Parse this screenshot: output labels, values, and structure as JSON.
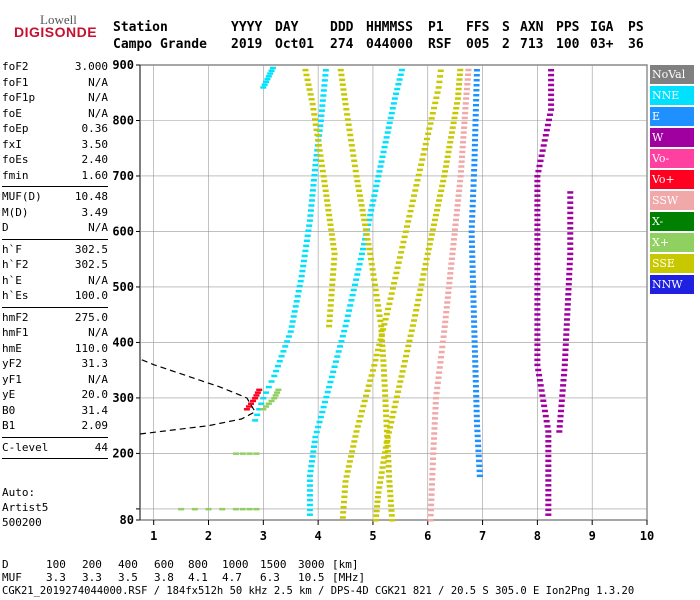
{
  "logo": {
    "line1": "Lowell",
    "line2": "DIGISONDE"
  },
  "header": {
    "labels": [
      "Station",
      "YYYY",
      "DAY",
      "DDD",
      "HHMMSS",
      "P1",
      "FFS",
      "S",
      "AXN",
      "PPS",
      "IGA",
      "PS"
    ],
    "values": [
      "Campo Grande",
      "2019",
      "Oct01",
      "274",
      "044000",
      "RSF",
      "005",
      "2",
      "713",
      "100",
      "03+",
      "36"
    ]
  },
  "params": [
    {
      "group": [
        {
          "k": "foF2",
          "v": "3.000"
        },
        {
          "k": "foF1",
          "v": "N/A"
        },
        {
          "k": "foF1p",
          "v": "N/A"
        },
        {
          "k": "foE",
          "v": "N/A"
        },
        {
          "k": "foEp",
          "v": "0.36"
        },
        {
          "k": "fxI",
          "v": "3.50"
        },
        {
          "k": "foEs",
          "v": "2.40"
        },
        {
          "k": "fmin",
          "v": "1.60"
        }
      ]
    },
    {
      "group": [
        {
          "k": "MUF(D)",
          "v": "10.48"
        },
        {
          "k": "M(D)",
          "v": "3.49"
        },
        {
          "k": "D",
          "v": "N/A"
        }
      ]
    },
    {
      "group": [
        {
          "k": "h`F",
          "v": "302.5"
        },
        {
          "k": "h`F2",
          "v": "302.5"
        },
        {
          "k": "h`E",
          "v": "N/A"
        },
        {
          "k": "h`Es",
          "v": "100.0"
        }
      ]
    },
    {
      "group": [
        {
          "k": "hmF2",
          "v": "275.0"
        },
        {
          "k": "hmF1",
          "v": "N/A"
        },
        {
          "k": "hmE",
          "v": "110.0"
        },
        {
          "k": "yF2",
          "v": "31.3"
        },
        {
          "k": "yF1",
          "v": "N/A"
        },
        {
          "k": "yE",
          "v": "20.0"
        },
        {
          "k": "B0",
          "v": "31.4"
        },
        {
          "k": "B1",
          "v": "2.09"
        }
      ]
    },
    {
      "group": [
        {
          "k": "C-level",
          "v": "44"
        }
      ]
    }
  ],
  "auto": [
    "Auto:",
    "Artist5",
    "500200"
  ],
  "legend": [
    {
      "label": "NoVal",
      "color": "#808080"
    },
    {
      "label": "NNE",
      "color": "#00e0ff"
    },
    {
      "label": "E",
      "color": "#1e90ff"
    },
    {
      "label": "W",
      "color": "#a000a0"
    },
    {
      "label": "Vo-",
      "color": "#ff40a0"
    },
    {
      "label": "Vo+",
      "color": "#ff0020"
    },
    {
      "label": "SSW",
      "color": "#f0a8a8"
    },
    {
      "label": "X-",
      "color": "#008000"
    },
    {
      "label": "X+",
      "color": "#90d060"
    },
    {
      "label": "SSE",
      "color": "#c8c800"
    },
    {
      "label": "NNW",
      "color": "#2020e0"
    }
  ],
  "footer": {
    "d_row": [
      "D",
      "100",
      "200",
      "400",
      "600",
      "800",
      "1000",
      "1500",
      "3000",
      "[km]"
    ],
    "muf_row": [
      "MUF",
      "3.3",
      "3.3",
      "3.5",
      "3.8",
      "4.1",
      "4.7",
      "6.3",
      "10.5",
      "[MHz]"
    ],
    "info": "CGK21_2019274044000.RSF / 184fx512h 50 kHz 2.5 km / DPS-4D CGK21 821 / 20.5 S 305.0 E Ion2Png 1.3.20"
  },
  "chart_data": {
    "type": "scatter",
    "title": "",
    "xlabel": "",
    "ylabel": "",
    "xlim": [
      0.75,
      10.0
    ],
    "ylim": [
      80,
      900
    ],
    "xticks": [
      1,
      2,
      3,
      4,
      5,
      6,
      7,
      8,
      9,
      10
    ],
    "yticks": [
      80,
      100,
      200,
      300,
      400,
      500,
      600,
      700,
      800,
      900
    ],
    "ytick_labels": [
      80,
      200,
      300,
      400,
      500,
      600,
      700,
      800,
      900
    ],
    "grid": true,
    "legend_position": "right",
    "traces": [
      {
        "name": "NNE",
        "color": "#00e0ff",
        "points": [
          [
            2.85,
            260
          ],
          [
            3.0,
            300
          ],
          [
            3.2,
            340
          ],
          [
            3.5,
            420
          ],
          [
            3.7,
            520
          ],
          [
            3.85,
            620
          ],
          [
            3.95,
            720
          ],
          [
            4.05,
            800
          ],
          [
            4.15,
            900
          ]
        ]
      },
      {
        "name": "NNE",
        "color": "#00e0ff",
        "points": [
          [
            3.85,
            90
          ],
          [
            3.85,
            160
          ],
          [
            3.95,
            230
          ],
          [
            4.2,
            320
          ],
          [
            4.5,
            430
          ],
          [
            4.8,
            560
          ],
          [
            5.1,
            700
          ],
          [
            5.4,
            840
          ],
          [
            5.55,
            900
          ]
        ]
      },
      {
        "name": "SSE",
        "color": "#c8c800",
        "points": [
          [
            4.45,
            85
          ],
          [
            4.5,
            150
          ],
          [
            4.7,
            240
          ],
          [
            5.0,
            350
          ],
          [
            5.3,
            470
          ],
          [
            5.6,
            600
          ],
          [
            5.9,
            730
          ],
          [
            6.2,
            860
          ],
          [
            6.25,
            900
          ]
        ]
      },
      {
        "name": "SSE",
        "color": "#c8c800",
        "points": [
          [
            5.05,
            80
          ],
          [
            5.1,
            130
          ],
          [
            5.25,
            220
          ],
          [
            5.5,
            330
          ],
          [
            5.75,
            440
          ],
          [
            6.0,
            560
          ],
          [
            6.3,
            700
          ],
          [
            6.55,
            840
          ],
          [
            6.6,
            900
          ]
        ]
      },
      {
        "name": "SSE",
        "color": "#c8c800",
        "points": [
          [
            5.35,
            80
          ],
          [
            5.3,
            150
          ],
          [
            5.25,
            250
          ],
          [
            5.2,
            350
          ],
          [
            5.15,
            430
          ],
          [
            4.95,
            560
          ],
          [
            4.7,
            700
          ],
          [
            4.5,
            830
          ],
          [
            4.4,
            900
          ]
        ]
      },
      {
        "name": "SSE",
        "color": "#c8c800",
        "points": [
          [
            4.2,
            430
          ],
          [
            4.3,
            560
          ],
          [
            4.1,
            700
          ],
          [
            3.9,
            830
          ],
          [
            3.75,
            900
          ]
        ]
      },
      {
        "name": "SSW",
        "color": "#f0a8a8",
        "points": [
          [
            6.05,
            80
          ],
          [
            6.1,
            200
          ],
          [
            6.15,
            300
          ],
          [
            6.3,
            420
          ],
          [
            6.45,
            560
          ],
          [
            6.6,
            700
          ],
          [
            6.7,
            840
          ],
          [
            6.75,
            900
          ]
        ]
      },
      {
        "name": "E",
        "color": "#1e90ff",
        "points": [
          [
            6.95,
            160
          ],
          [
            6.9,
            250
          ],
          [
            6.85,
            420
          ],
          [
            6.8,
            600
          ],
          [
            6.85,
            720
          ],
          [
            6.9,
            900
          ]
        ]
      },
      {
        "name": "W",
        "color": "#a000a0",
        "points": [
          [
            8.2,
            90
          ],
          [
            8.2,
            240
          ],
          [
            8.0,
            360
          ],
          [
            8.0,
            560
          ],
          [
            8.0,
            700
          ],
          [
            8.25,
            820
          ],
          [
            8.25,
            900
          ]
        ]
      },
      {
        "name": "W",
        "color": "#a000a0",
        "points": [
          [
            8.4,
            240
          ],
          [
            8.5,
            360
          ],
          [
            8.6,
            560
          ],
          [
            8.6,
            680
          ]
        ]
      },
      {
        "name": "X+",
        "color": "#90d060",
        "points": [
          [
            1.5,
            100
          ],
          [
            2.5,
            100
          ],
          [
            3.0,
            100
          ]
        ]
      },
      {
        "name": "X+",
        "color": "#90d060",
        "points": [
          [
            2.5,
            200
          ],
          [
            3.0,
            200
          ]
        ]
      },
      {
        "name": "Vo+",
        "color": "#ff0020",
        "points": [
          [
            2.7,
            280
          ],
          [
            2.85,
            300
          ],
          [
            2.95,
            320
          ]
        ]
      },
      {
        "name": "NNE",
        "color": "#00e0ff",
        "points": [
          [
            3.0,
            860
          ],
          [
            3.1,
            880
          ],
          [
            3.2,
            900
          ]
        ]
      },
      {
        "name": "X+",
        "color": "#90d060",
        "points": [
          [
            3.0,
            280
          ],
          [
            3.2,
            300
          ],
          [
            3.3,
            320
          ]
        ]
      }
    ],
    "profile_curve": [
      [
        0.75,
        235
      ],
      [
        2.0,
        250
      ],
      [
        2.6,
        262
      ],
      [
        2.85,
        275
      ],
      [
        2.7,
        300
      ],
      [
        2.2,
        320
      ],
      [
        1.6,
        340
      ],
      [
        1.0,
        360
      ],
      [
        0.75,
        370
      ]
    ]
  }
}
